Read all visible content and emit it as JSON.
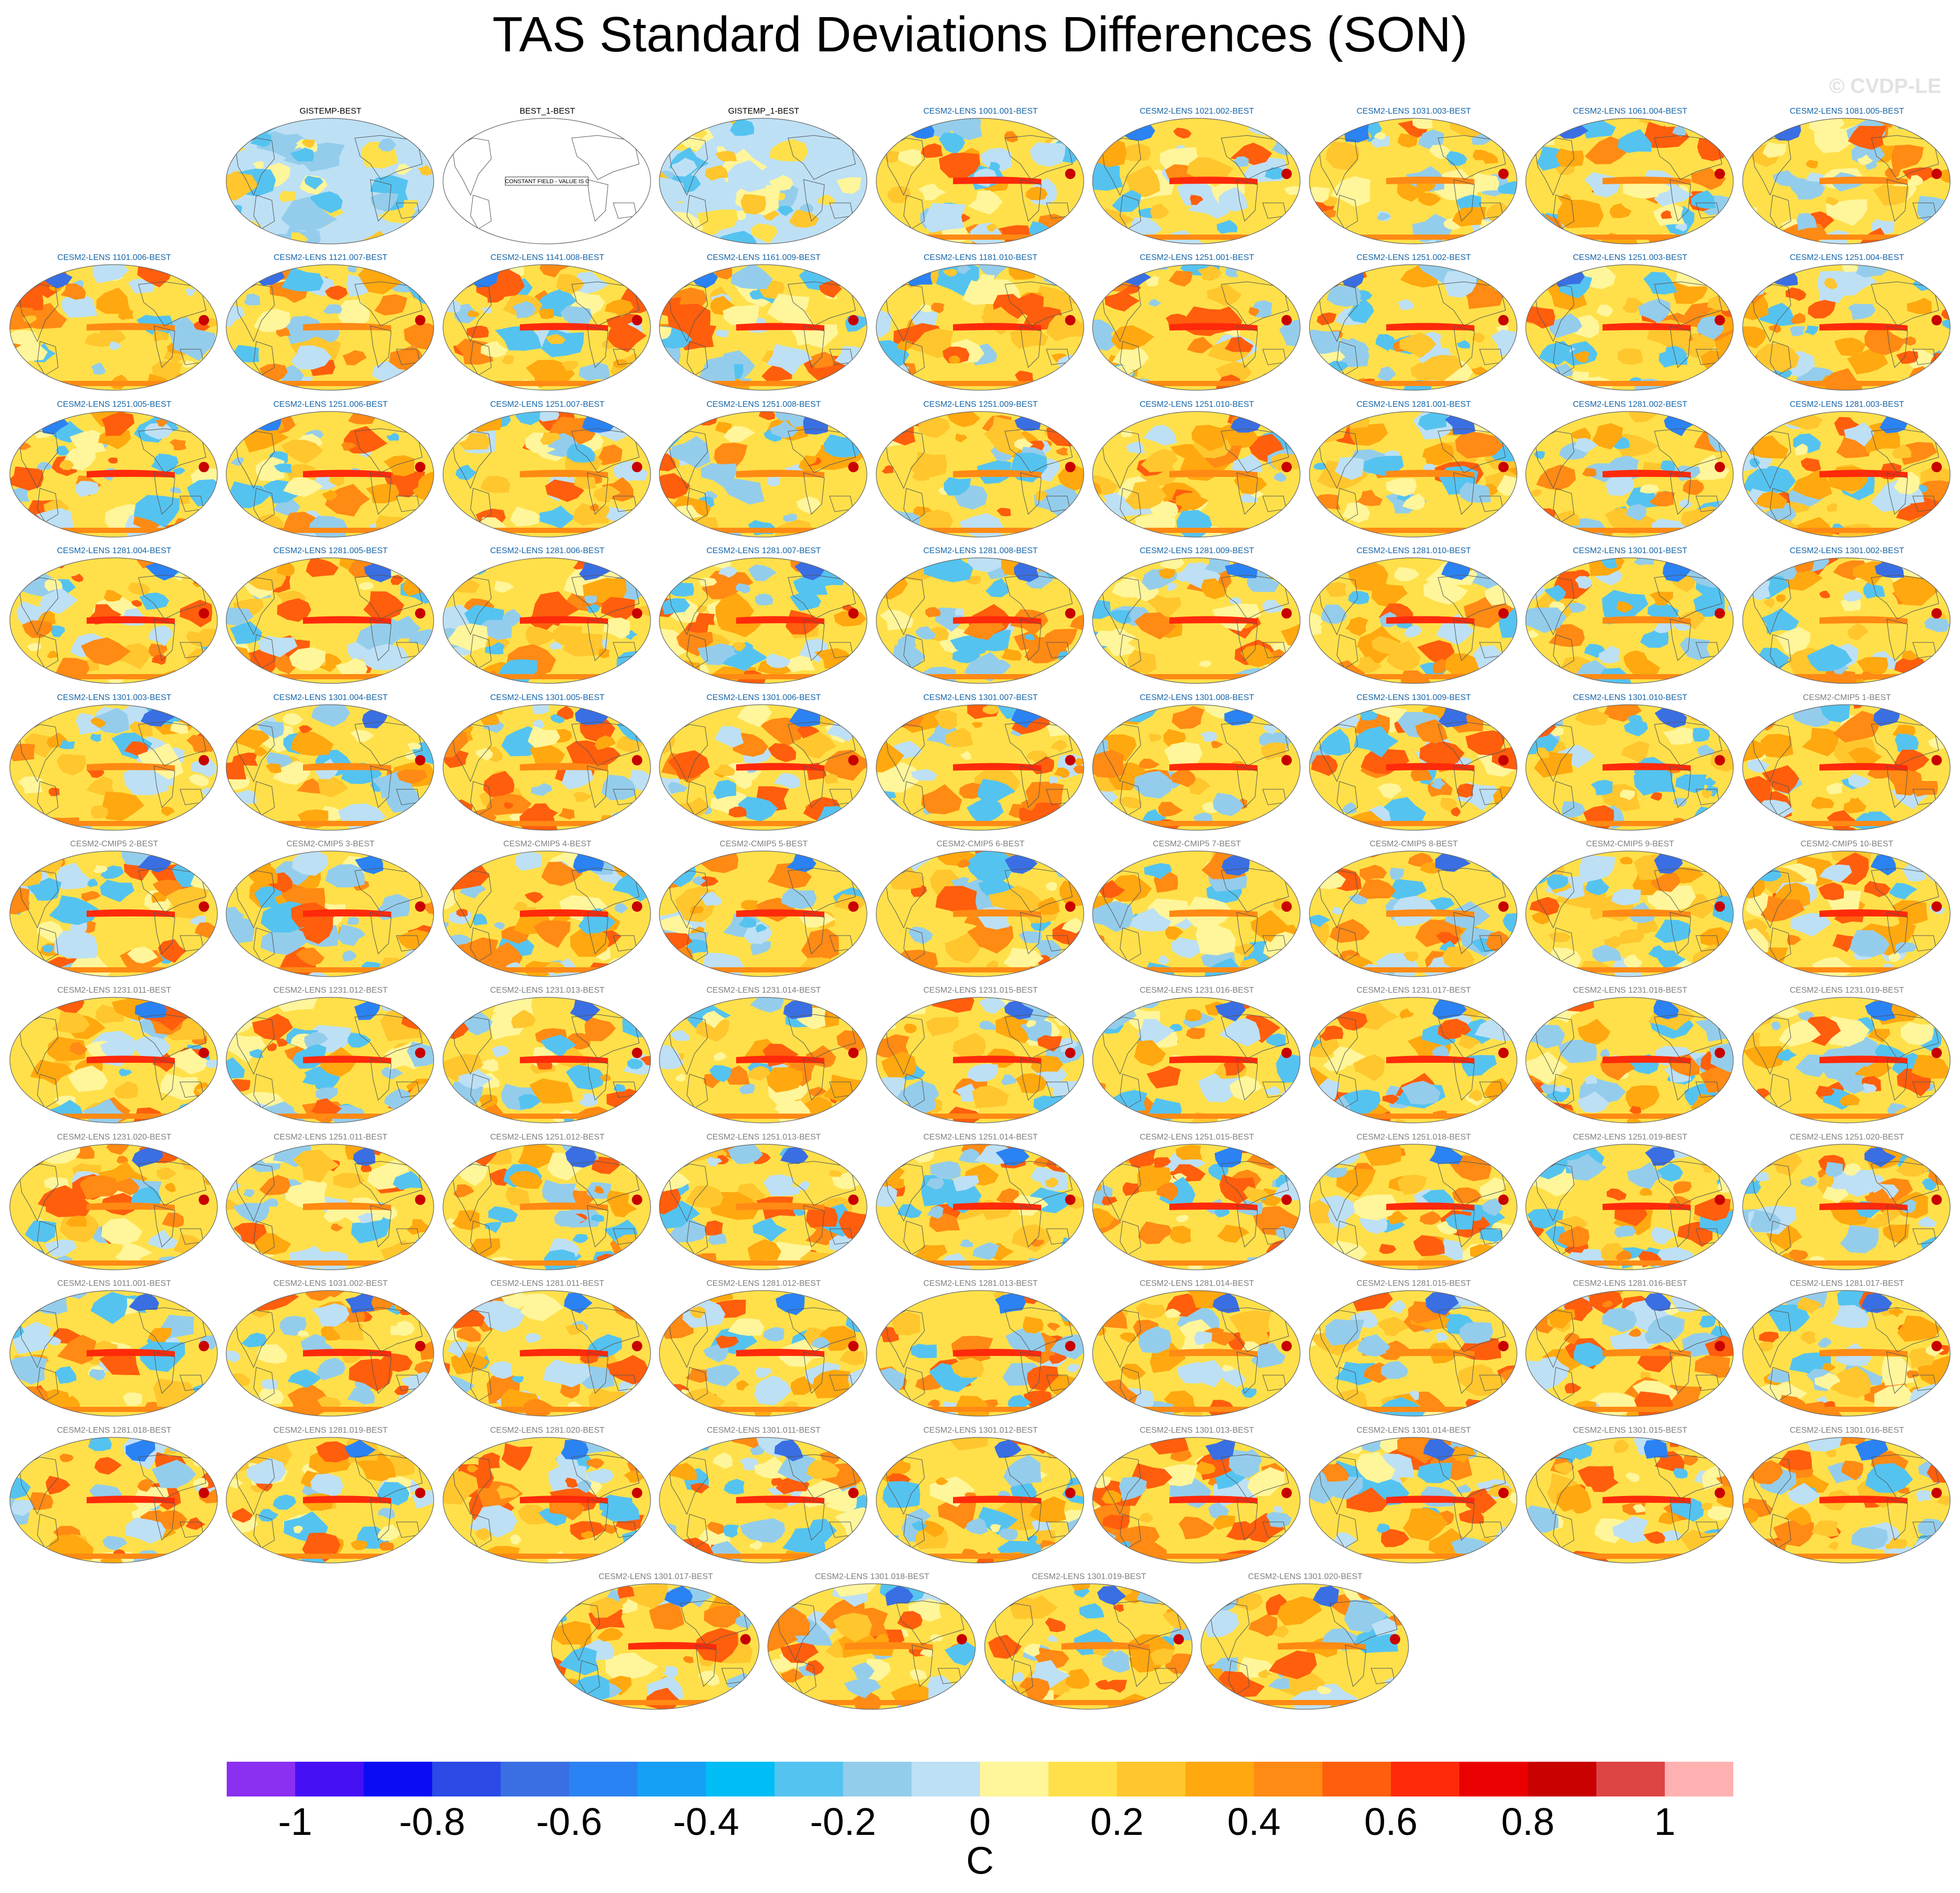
{
  "figure": {
    "title": "TAS Standard Deviations Differences (SON)",
    "watermark": "© CVDP-LE",
    "units": "C"
  },
  "panels": [
    {
      "label": "GISTEMP-BEST",
      "group": "obs"
    },
    {
      "label": "BEST_1-BEST",
      "group": "obs",
      "constant": true,
      "note": "CONSTANT FIELD - VALUE IS 0"
    },
    {
      "label": "GISTEMP_1-BEST",
      "group": "obs"
    },
    {
      "label": "CESM2-LENS 1001.001-BEST",
      "group": "lens"
    },
    {
      "label": "CESM2-LENS 1021.002-BEST",
      "group": "lens"
    },
    {
      "label": "CESM2-LENS 1031.003-BEST",
      "group": "lens"
    },
    {
      "label": "CESM2-LENS 1061.004-BEST",
      "group": "lens"
    },
    {
      "label": "CESM2-LENS 1081.005-BEST",
      "group": "lens"
    },
    {
      "label": "CESM2-LENS 1101.006-BEST",
      "group": "lens"
    },
    {
      "label": "CESM2-LENS 1121.007-BEST",
      "group": "lens"
    },
    {
      "label": "CESM2-LENS 1141.008-BEST",
      "group": "lens"
    },
    {
      "label": "CESM2-LENS 1161.009-BEST",
      "group": "lens"
    },
    {
      "label": "CESM2-LENS 1181.010-BEST",
      "group": "lens"
    },
    {
      "label": "CESM2-LENS 1251.001-BEST",
      "group": "lens"
    },
    {
      "label": "CESM2-LENS 1251.002-BEST",
      "group": "lens"
    },
    {
      "label": "CESM2-LENS 1251.003-BEST",
      "group": "lens"
    },
    {
      "label": "CESM2-LENS 1251.004-BEST",
      "group": "lens"
    },
    {
      "label": "CESM2-LENS 1251.005-BEST",
      "group": "lens"
    },
    {
      "label": "CESM2-LENS 1251.006-BEST",
      "group": "lens"
    },
    {
      "label": "CESM2-LENS 1251.007-BEST",
      "group": "lens"
    },
    {
      "label": "CESM2-LENS 1251.008-BEST",
      "group": "lens"
    },
    {
      "label": "CESM2-LENS 1251.009-BEST",
      "group": "lens"
    },
    {
      "label": "CESM2-LENS 1251.010-BEST",
      "group": "lens"
    },
    {
      "label": "CESM2-LENS 1281.001-BEST",
      "group": "lens"
    },
    {
      "label": "CESM2-LENS 1281.002-BEST",
      "group": "lens"
    },
    {
      "label": "CESM2-LENS 1281.003-BEST",
      "group": "lens"
    },
    {
      "label": "CESM2-LENS 1281.004-BEST",
      "group": "lens"
    },
    {
      "label": "CESM2-LENS 1281.005-BEST",
      "group": "lens"
    },
    {
      "label": "CESM2-LENS 1281.006-BEST",
      "group": "lens"
    },
    {
      "label": "CESM2-LENS 1281.007-BEST",
      "group": "lens"
    },
    {
      "label": "CESM2-LENS 1281.008-BEST",
      "group": "lens"
    },
    {
      "label": "CESM2-LENS 1281.009-BEST",
      "group": "lens"
    },
    {
      "label": "CESM2-LENS 1281.010-BEST",
      "group": "lens"
    },
    {
      "label": "CESM2-LENS 1301.001-BEST",
      "group": "lens"
    },
    {
      "label": "CESM2-LENS 1301.002-BEST",
      "group": "lens"
    },
    {
      "label": "CESM2-LENS 1301.003-BEST",
      "group": "lens"
    },
    {
      "label": "CESM2-LENS 1301.004-BEST",
      "group": "lens"
    },
    {
      "label": "CESM2-LENS 1301.005-BEST",
      "group": "lens"
    },
    {
      "label": "CESM2-LENS 1301.006-BEST",
      "group": "lens"
    },
    {
      "label": "CESM2-LENS 1301.007-BEST",
      "group": "lens"
    },
    {
      "label": "CESM2-LENS 1301.008-BEST",
      "group": "lens"
    },
    {
      "label": "CESM2-LENS 1301.009-BEST",
      "group": "lens"
    },
    {
      "label": "CESM2-LENS 1301.010-BEST",
      "group": "lens"
    },
    {
      "label": "CESM2-CMIP5 1-BEST",
      "group": "other"
    },
    {
      "label": "CESM2-CMIP5 2-BEST",
      "group": "other"
    },
    {
      "label": "CESM2-CMIP5 3-BEST",
      "group": "other"
    },
    {
      "label": "CESM2-CMIP5 4-BEST",
      "group": "other"
    },
    {
      "label": "CESM2-CMIP5 5-BEST",
      "group": "other"
    },
    {
      "label": "CESM2-CMIP5 6-BEST",
      "group": "other"
    },
    {
      "label": "CESM2-CMIP5 7-BEST",
      "group": "other"
    },
    {
      "label": "CESM2-CMIP5 8-BEST",
      "group": "other"
    },
    {
      "label": "CESM2-CMIP5 9-BEST",
      "group": "other"
    },
    {
      "label": "CESM2-CMIP5 10-BEST",
      "group": "other"
    },
    {
      "label": "CESM2-LENS 1231.011-BEST",
      "group": "other"
    },
    {
      "label": "CESM2-LENS 1231.012-BEST",
      "group": "other"
    },
    {
      "label": "CESM2-LENS 1231.013-BEST",
      "group": "other"
    },
    {
      "label": "CESM2-LENS 1231.014-BEST",
      "group": "other"
    },
    {
      "label": "CESM2-LENS 1231.015-BEST",
      "group": "other"
    },
    {
      "label": "CESM2-LENS 1231.016-BEST",
      "group": "other"
    },
    {
      "label": "CESM2-LENS 1231.017-BEST",
      "group": "other"
    },
    {
      "label": "CESM2-LENS 1231.018-BEST",
      "group": "other"
    },
    {
      "label": "CESM2-LENS 1231.019-BEST",
      "group": "other"
    },
    {
      "label": "CESM2-LENS 1231.020-BEST",
      "group": "other"
    },
    {
      "label": "CESM2-LENS 1251.011-BEST",
      "group": "other"
    },
    {
      "label": "CESM2-LENS 1251.012-BEST",
      "group": "other"
    },
    {
      "label": "CESM2-LENS 1251.013-BEST",
      "group": "other"
    },
    {
      "label": "CESM2-LENS 1251.014-BEST",
      "group": "other"
    },
    {
      "label": "CESM2-LENS 1251.015-BEST",
      "group": "other"
    },
    {
      "label": "CESM2-LENS 1251.018-BEST",
      "group": "other"
    },
    {
      "label": "CESM2-LENS 1251.019-BEST",
      "group": "other"
    },
    {
      "label": "CESM2-LENS 1251.020-BEST",
      "group": "other"
    },
    {
      "label": "CESM2-LENS 1011.001-BEST",
      "group": "other"
    },
    {
      "label": "CESM2-LENS 1031.002-BEST",
      "group": "other"
    },
    {
      "label": "CESM2-LENS 1281.011-BEST",
      "group": "other"
    },
    {
      "label": "CESM2-LENS 1281.012-BEST",
      "group": "other"
    },
    {
      "label": "CESM2-LENS 1281.013-BEST",
      "group": "other"
    },
    {
      "label": "CESM2-LENS 1281.014-BEST",
      "group": "other"
    },
    {
      "label": "CESM2-LENS 1281.015-BEST",
      "group": "other"
    },
    {
      "label": "CESM2-LENS 1281.016-BEST",
      "group": "other"
    },
    {
      "label": "CESM2-LENS 1281.017-BEST",
      "group": "other"
    },
    {
      "label": "CESM2-LENS 1281.018-BEST",
      "group": "other"
    },
    {
      "label": "CESM2-LENS 1281.019-BEST",
      "group": "other"
    },
    {
      "label": "CESM2-LENS 1281.020-BEST",
      "group": "other"
    },
    {
      "label": "CESM2-LENS 1301.011-BEST",
      "group": "other"
    },
    {
      "label": "CESM2-LENS 1301.012-BEST",
      "group": "other"
    },
    {
      "label": "CESM2-LENS 1301.013-BEST",
      "group": "other"
    },
    {
      "label": "CESM2-LENS 1301.014-BEST",
      "group": "other"
    },
    {
      "label": "CESM2-LENS 1301.015-BEST",
      "group": "other"
    },
    {
      "label": "CESM2-LENS 1301.016-BEST",
      "group": "other"
    },
    {
      "label": "CESM2-LENS 1301.017-BEST",
      "group": "other"
    },
    {
      "label": "CESM2-LENS 1301.018-BEST",
      "group": "other"
    },
    {
      "label": "CESM2-LENS 1301.019-BEST",
      "group": "other"
    },
    {
      "label": "CESM2-LENS 1301.020-BEST",
      "group": "other"
    }
  ],
  "title_colors": {
    "obs": "#000000",
    "lens": "#1565a8",
    "other": "#7f7f7f"
  },
  "colorbar": {
    "colors": [
      "#8b2ff0",
      "#4610f5",
      "#0c0cf4",
      "#2b4ae6",
      "#3a6fe3",
      "#2b82f3",
      "#179ff5",
      "#00bdf5",
      "#55c3f0",
      "#94cdeb",
      "#bde0f5",
      "#fff59a",
      "#ffe04a",
      "#ffc62e",
      "#ffa80f",
      "#ff8a14",
      "#ff5e0d",
      "#ff2a0a",
      "#ea0000",
      "#c80000",
      "#dd4444",
      "#ffb1b1"
    ],
    "tick_labels": [
      "-1",
      "-0.8",
      "-0.6",
      "-0.4",
      "-0.2",
      "0",
      "0.2",
      "0.4",
      "0.6",
      "0.8",
      "1"
    ],
    "tick_values": [
      -1,
      -0.8,
      -0.6,
      -0.4,
      -0.2,
      0,
      0.2,
      0.4,
      0.6,
      0.8,
      1
    ],
    "range": [
      -1.1,
      1.1
    ]
  }
}
